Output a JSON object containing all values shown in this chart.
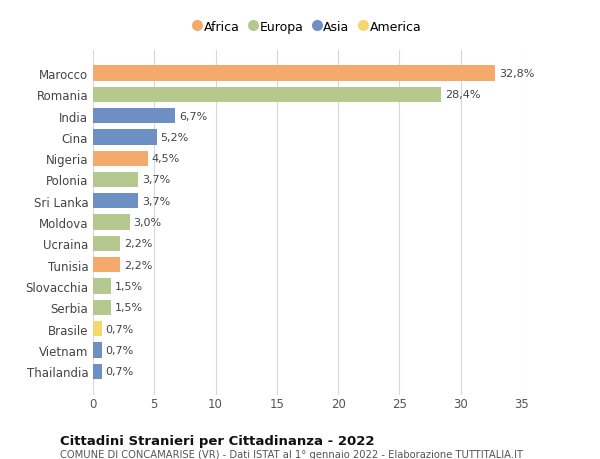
{
  "countries": [
    "Marocco",
    "Romania",
    "India",
    "Cina",
    "Nigeria",
    "Polonia",
    "Sri Lanka",
    "Moldova",
    "Ucraina",
    "Tunisia",
    "Slovacchia",
    "Serbia",
    "Brasile",
    "Vietnam",
    "Thailandia"
  ],
  "values": [
    32.8,
    28.4,
    6.7,
    5.2,
    4.5,
    3.7,
    3.7,
    3.0,
    2.2,
    2.2,
    1.5,
    1.5,
    0.7,
    0.7,
    0.7
  ],
  "labels": [
    "32,8%",
    "28,4%",
    "6,7%",
    "5,2%",
    "4,5%",
    "3,7%",
    "3,7%",
    "3,0%",
    "2,2%",
    "2,2%",
    "1,5%",
    "1,5%",
    "0,7%",
    "0,7%",
    "0,7%"
  ],
  "continents": [
    "Africa",
    "Europa",
    "Asia",
    "Asia",
    "Africa",
    "Europa",
    "Asia",
    "Europa",
    "Europa",
    "Africa",
    "Europa",
    "Europa",
    "America",
    "Asia",
    "Asia"
  ],
  "colors": {
    "Africa": "#F4A96D",
    "Europa": "#B5C98E",
    "Asia": "#6E8FC4",
    "America": "#F5D76E"
  },
  "legend_order": [
    "Africa",
    "Europa",
    "Asia",
    "America"
  ],
  "title": "Cittadini Stranieri per Cittadinanza - 2022",
  "subtitle": "COMUNE DI CONCAMARISE (VR) - Dati ISTAT al 1° gennaio 2022 - Elaborazione TUTTITALIA.IT",
  "xlim": [
    0,
    35
  ],
  "xticks": [
    0,
    5,
    10,
    15,
    20,
    25,
    30,
    35
  ],
  "background_color": "#ffffff",
  "grid_color": "#d8d8d8"
}
